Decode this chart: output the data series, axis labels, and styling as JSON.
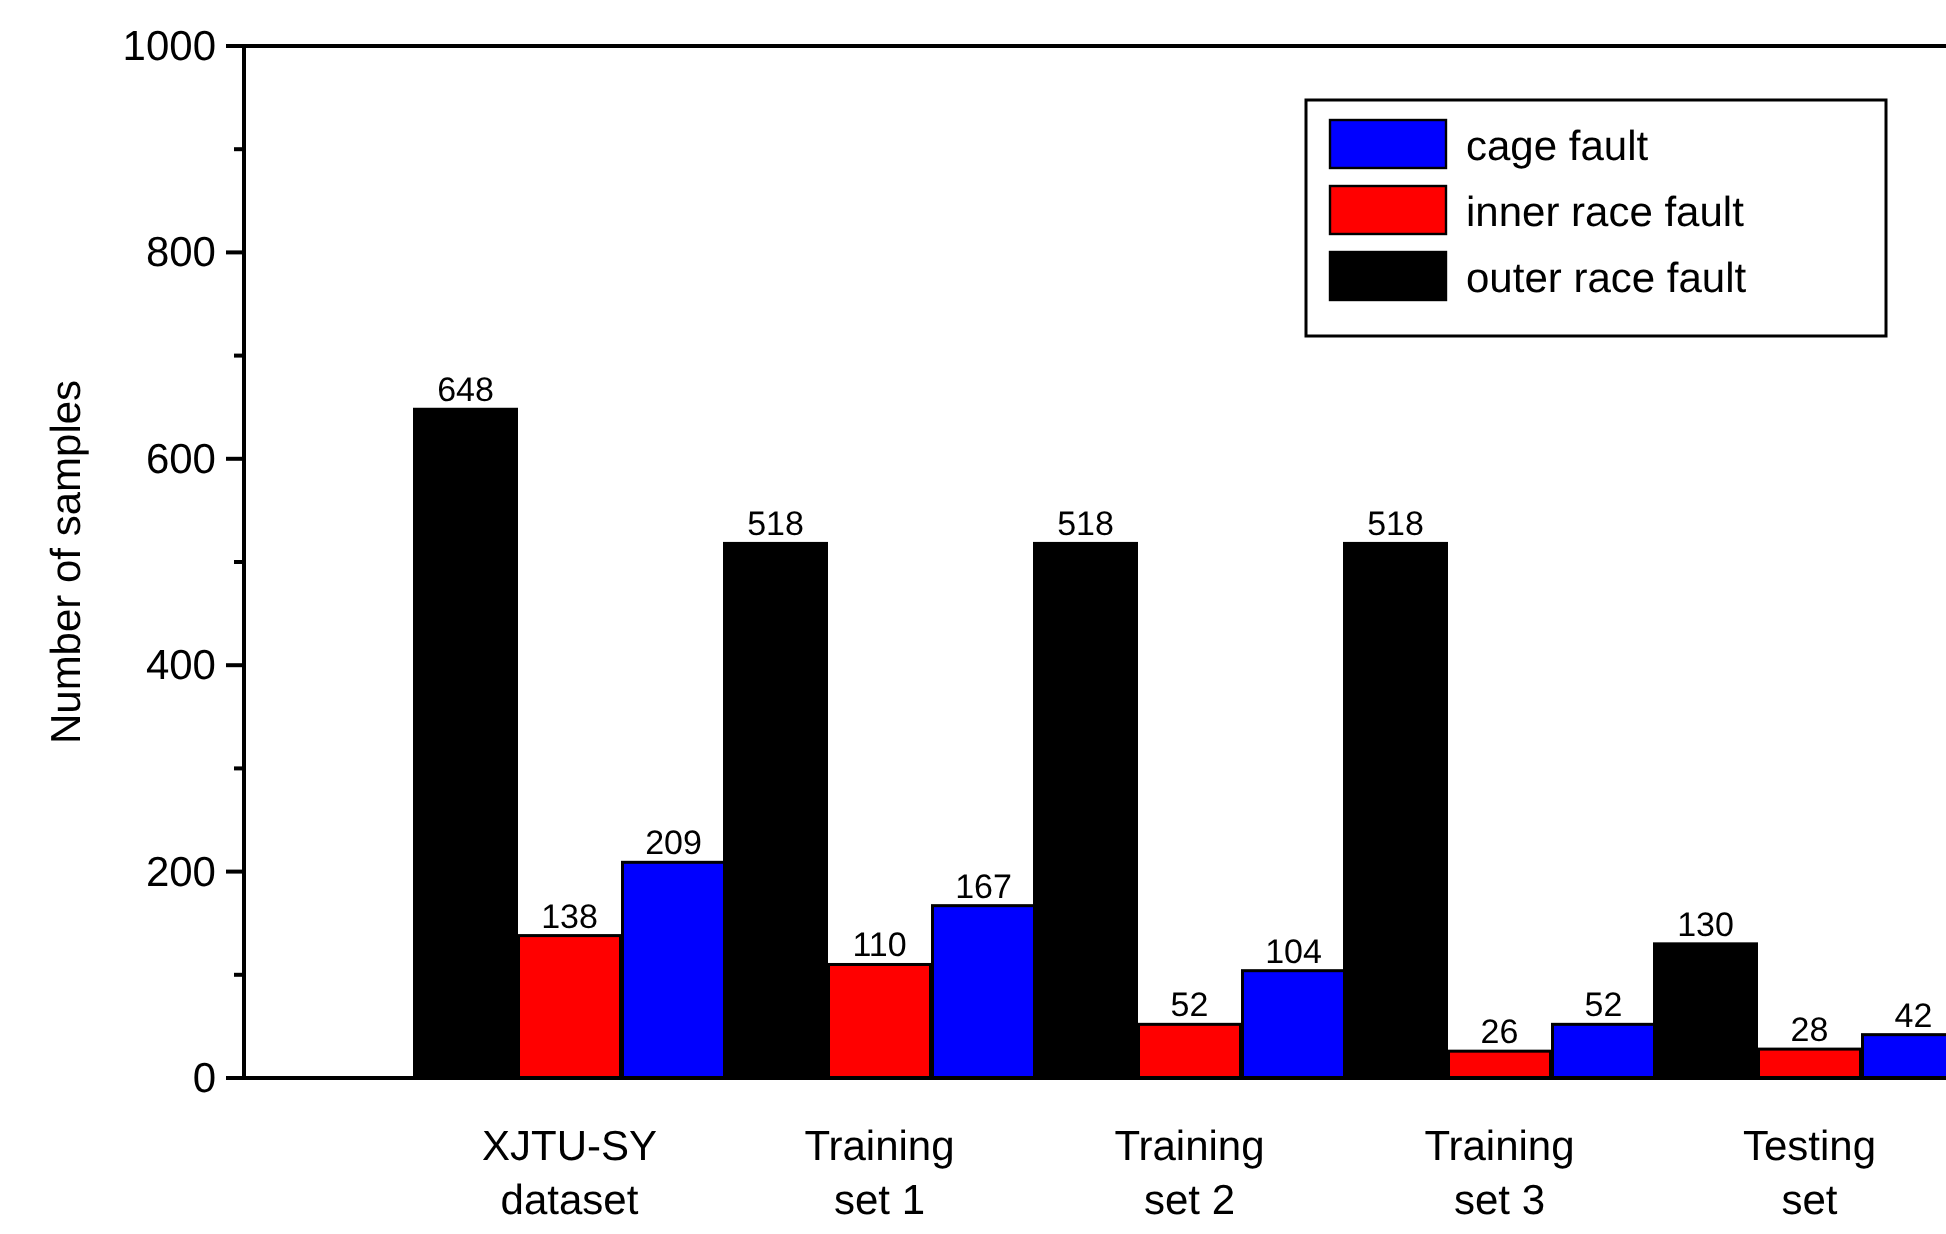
{
  "chart_data": {
    "type": "bar",
    "ylabel": "Number of samples",
    "categories": [
      "XJTU-SY\ndataset",
      "Training\nset 1",
      "Training\nset 2",
      "Training\nset 3",
      "Testing\nset"
    ],
    "series": [
      {
        "name": "outer race fault",
        "color": "#000000",
        "values": [
          648,
          518,
          518,
          518,
          130
        ]
      },
      {
        "name": "inner race fault",
        "color": "#ff0000",
        "values": [
          138,
          110,
          52,
          26,
          28
        ]
      },
      {
        "name": "cage fault",
        "color": "#0000ff",
        "values": [
          209,
          167,
          104,
          52,
          42
        ]
      }
    ],
    "ylim": [
      0,
      1000
    ],
    "yticks": [
      0,
      {
        "value": 100,
        "label": null
      },
      200,
      {
        "value": 300,
        "label": null
      },
      400,
      {
        "value": 500,
        "label": null
      },
      600,
      {
        "value": 700,
        "label": null
      },
      800,
      {
        "value": 900,
        "label": null
      },
      1000
    ],
    "data_labels": true,
    "legend": "top right",
    "grid": false
  }
}
